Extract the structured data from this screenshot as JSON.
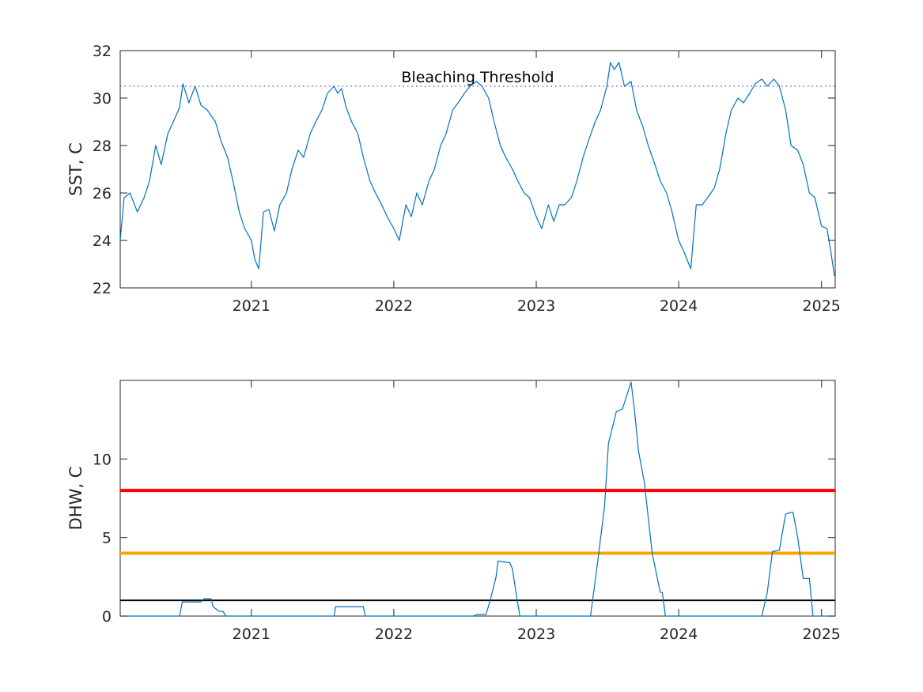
{
  "chart_data": [
    {
      "type": "line",
      "ylabel": "SST, C",
      "xlabel": "",
      "title": "",
      "xlim": [
        "2020-01-31",
        "2025-02-05"
      ],
      "ylim": [
        22,
        32
      ],
      "xticks": [
        "2021",
        "2022",
        "2023",
        "2024",
        "2025"
      ],
      "yticks": [
        "22",
        "24",
        "26",
        "28",
        "30",
        "32"
      ],
      "grid": false,
      "threshold": {
        "label": "Bleaching Threshold",
        "value": 30.5,
        "color": "#7b68ee",
        "style": "dotted"
      },
      "series": [
        {
          "color": "#0072bd",
          "x": [
            "2020-01-31",
            "2020-02-10",
            "2020-02-25",
            "2020-03-15",
            "2020-04-01",
            "2020-04-15",
            "2020-05-01",
            "2020-05-15",
            "2020-06-01",
            "2020-06-15",
            "2020-07-01",
            "2020-07-10",
            "2020-07-25",
            "2020-08-10",
            "2020-08-25",
            "2020-09-10",
            "2020-10-01",
            "2020-10-15",
            "2020-11-01",
            "2020-11-15",
            "2020-12-01",
            "2020-12-15",
            "2021-01-01",
            "2021-01-10",
            "2021-01-20",
            "2021-02-01",
            "2021-02-15",
            "2021-03-01",
            "2021-03-15",
            "2021-04-01",
            "2021-04-15",
            "2021-05-01",
            "2021-05-15",
            "2021-06-01",
            "2021-06-15",
            "2021-07-01",
            "2021-07-15",
            "2021-08-01",
            "2021-08-10",
            "2021-08-20",
            "2021-09-01",
            "2021-09-15",
            "2021-10-01",
            "2021-10-15",
            "2021-11-01",
            "2021-11-15",
            "2021-12-01",
            "2021-12-15",
            "2022-01-01",
            "2022-01-15",
            "2022-02-01",
            "2022-02-15",
            "2022-03-01",
            "2022-03-15",
            "2022-04-01",
            "2022-04-15",
            "2022-05-01",
            "2022-05-15",
            "2022-06-01",
            "2022-06-15",
            "2022-07-01",
            "2022-07-15",
            "2022-08-01",
            "2022-08-15",
            "2022-09-01",
            "2022-09-15",
            "2022-10-01",
            "2022-10-15",
            "2022-11-01",
            "2022-11-15",
            "2022-12-01",
            "2022-12-15",
            "2023-01-01",
            "2023-01-15",
            "2023-02-01",
            "2023-02-15",
            "2023-03-01",
            "2023-03-15",
            "2023-04-01",
            "2023-04-15",
            "2023-05-01",
            "2023-05-15",
            "2023-06-01",
            "2023-06-15",
            "2023-07-01",
            "2023-07-10",
            "2023-07-20",
            "2023-08-01",
            "2023-08-15",
            "2023-09-01",
            "2023-09-15",
            "2023-10-01",
            "2023-10-15",
            "2023-11-01",
            "2023-11-15",
            "2023-12-01",
            "2023-12-15",
            "2024-01-01",
            "2024-01-15",
            "2024-02-01",
            "2024-02-15",
            "2024-03-01",
            "2024-03-15",
            "2024-04-01",
            "2024-04-15",
            "2024-05-01",
            "2024-05-15",
            "2024-06-01",
            "2024-06-15",
            "2024-07-01",
            "2024-07-15",
            "2024-08-01",
            "2024-08-15",
            "2024-09-01",
            "2024-09-15",
            "2024-10-01",
            "2024-10-15",
            "2024-11-01",
            "2024-11-15",
            "2024-12-01",
            "2024-12-15",
            "2025-01-01",
            "2025-01-15",
            "2025-01-25",
            "2025-02-03"
          ],
          "y": [
            24.0,
            25.8,
            26.0,
            25.2,
            25.8,
            26.5,
            28.0,
            27.2,
            28.5,
            29.0,
            29.6,
            30.6,
            29.8,
            30.5,
            29.7,
            29.5,
            29.0,
            28.2,
            27.5,
            26.5,
            25.2,
            24.5,
            24.0,
            23.2,
            22.8,
            25.2,
            25.3,
            24.4,
            25.5,
            26.0,
            27.0,
            27.8,
            27.5,
            28.5,
            29.0,
            29.5,
            30.2,
            30.5,
            30.2,
            30.4,
            29.6,
            29.0,
            28.5,
            27.5,
            26.5,
            26.0,
            25.5,
            25.0,
            24.5,
            24.0,
            25.5,
            25.0,
            26.0,
            25.5,
            26.5,
            27.0,
            28.0,
            28.5,
            29.5,
            29.8,
            30.2,
            30.5,
            30.7,
            30.5,
            30.0,
            29.0,
            28.0,
            27.5,
            27.0,
            26.5,
            26.0,
            25.8,
            25.0,
            24.5,
            25.5,
            24.8,
            25.5,
            25.5,
            25.8,
            26.5,
            27.5,
            28.2,
            29.0,
            29.5,
            30.5,
            31.5,
            31.2,
            31.5,
            30.5,
            30.7,
            29.5,
            28.8,
            28.0,
            27.2,
            26.5,
            26.0,
            25.2,
            24.0,
            23.5,
            22.8,
            25.5,
            25.5,
            25.8,
            26.2,
            27.0,
            28.5,
            29.5,
            30.0,
            29.8,
            30.2,
            30.6,
            30.8,
            30.5,
            30.8,
            30.5,
            29.5,
            28.0,
            27.8,
            27.2,
            26.0,
            25.8,
            24.6,
            24.5,
            23.5,
            22.5
          ]
        }
      ]
    },
    {
      "type": "line",
      "ylabel": "DHW, C",
      "xlabel": "",
      "title": "",
      "xlim": [
        "2020-01-31",
        "2025-02-05"
      ],
      "ylim": [
        0,
        15
      ],
      "xticks": [
        "2021",
        "2022",
        "2023",
        "2024",
        "2025"
      ],
      "yticks": [
        "0",
        "5",
        "10"
      ],
      "grid": false,
      "reference_lines": [
        {
          "value": 8,
          "color": "#ff0000"
        },
        {
          "value": 4,
          "color": "#ffa500"
        },
        {
          "value": 1,
          "color": "#000000"
        }
      ],
      "series": [
        {
          "color": "#0072bd",
          "x": [
            "2020-01-31",
            "2020-07-01",
            "2020-07-08",
            "2020-08-25",
            "2020-09-01",
            "2020-09-20",
            "2020-09-25",
            "2020-10-10",
            "2020-10-20",
            "2020-10-28",
            "2021-08-01",
            "2021-08-05",
            "2021-10-15",
            "2021-10-20",
            "2022-07-25",
            "2022-08-01",
            "2022-08-25",
            "2022-09-05",
            "2022-09-20",
            "2022-09-25",
            "2022-10-25",
            "2022-11-01",
            "2022-11-10",
            "2022-11-20",
            "2023-05-20",
            "2023-06-05",
            "2023-06-25",
            "2023-07-05",
            "2023-07-25",
            "2023-08-10",
            "2023-09-01",
            "2023-09-10",
            "2023-09-20",
            "2023-10-05",
            "2023-10-25",
            "2023-11-15",
            "2023-11-20",
            "2023-11-28",
            "2024-08-01",
            "2024-08-15",
            "2024-08-28",
            "2024-09-15",
            "2024-10-01",
            "2024-10-15",
            "2024-10-20",
            "2024-11-01",
            "2024-11-15",
            "2024-12-01",
            "2024-12-10",
            "2025-02-05"
          ],
          "y": [
            0,
            0,
            0.9,
            0.9,
            1.1,
            1.1,
            0.6,
            0.3,
            0.3,
            0,
            0,
            0.6,
            0.6,
            0,
            0,
            0.1,
            0.1,
            1.0,
            2.5,
            3.5,
            3.4,
            3.0,
            1.5,
            0,
            0,
            3.0,
            7.0,
            11.0,
            13.0,
            13.2,
            14.9,
            13.0,
            10.5,
            8.5,
            4.0,
            1.5,
            1.5,
            0,
            0,
            1.5,
            4.1,
            4.2,
            6.5,
            6.6,
            6.6,
            5.0,
            2.4,
            2.4,
            0,
            0
          ]
        }
      ]
    }
  ]
}
